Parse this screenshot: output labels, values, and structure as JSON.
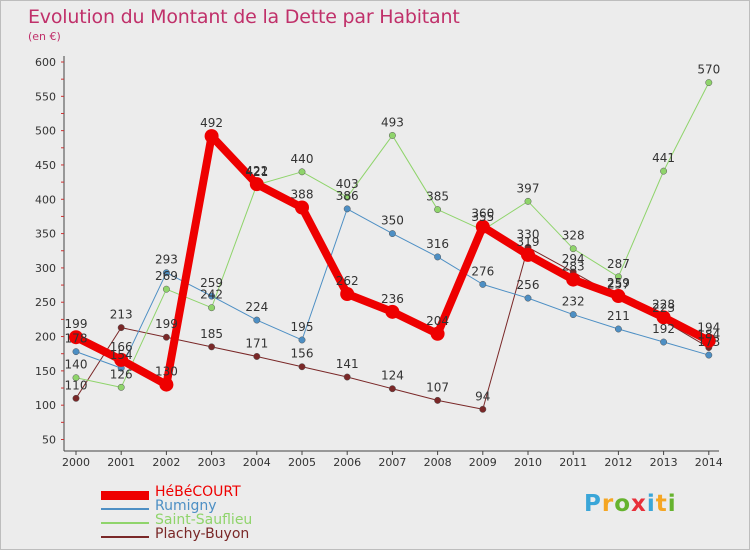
{
  "header": {
    "title": "Evolution du Montant de la Dette par Habitant",
    "subtitle": "(en €)"
  },
  "logo": {
    "text": "Proxiti",
    "letters": [
      {
        "ch": "P",
        "color": "#3aa6d8"
      },
      {
        "ch": "r",
        "color": "#f5a623"
      },
      {
        "ch": "o",
        "color": "#66b32e"
      },
      {
        "ch": "x",
        "color": "#e8303a"
      },
      {
        "ch": "i",
        "color": "#3aa6d8"
      },
      {
        "ch": "t",
        "color": "#f5a623"
      },
      {
        "ch": "i",
        "color": "#66b32e"
      }
    ]
  },
  "chart_data": {
    "type": "line",
    "title": "Evolution du Montant de la Dette par Habitant",
    "subtitle": "(en €)",
    "x": [
      "2000",
      "2001",
      "2002",
      "2003",
      "2004",
      "2005",
      "2006",
      "2007",
      "2008",
      "2009",
      "2010",
      "2011",
      "2012",
      "2013",
      "2014"
    ],
    "ylim": [
      50,
      600
    ],
    "yticks": [
      50,
      100,
      150,
      200,
      250,
      300,
      350,
      400,
      450,
      500,
      550,
      600
    ],
    "grid": false,
    "legend_position": "bottom-left",
    "series": [
      {
        "name": "HéBéCOURT",
        "color": "#ee0000",
        "width": 8,
        "values": [
          199,
          166,
          130,
          492,
          422,
          388,
          262,
          236,
          204,
          360,
          319,
          283,
          259,
          228,
          194
        ],
        "labels": [
          "199",
          "166",
          "130",
          "492",
          "422",
          "388",
          "262",
          "236",
          "204",
          "360",
          "319",
          "283",
          "259",
          "228",
          "194"
        ]
      },
      {
        "name": "Rumigny",
        "color": "#4d8fc4",
        "width": 1,
        "values": [
          178,
          154,
          293,
          259,
          224,
          195,
          386,
          350,
          316,
          276,
          256,
          232,
          211,
          192,
          173
        ],
        "labels": [
          "178",
          "154",
          "293",
          "259",
          "224",
          "195",
          "386",
          "350",
          "316",
          "276",
          "256",
          "232",
          "211",
          "192",
          "173"
        ]
      },
      {
        "name": "Saint-Sauflieu",
        "color": "#8fd46b",
        "width": 1,
        "values": [
          140,
          126,
          269,
          242,
          421,
          440,
          403,
          493,
          385,
          355,
          397,
          328,
          287,
          441,
          570
        ],
        "labels": [
          "140",
          "126",
          "269",
          "242",
          "421",
          "440",
          "403",
          "493",
          "385",
          "355",
          "397",
          "328",
          "287",
          "441",
          "570"
        ]
      },
      {
        "name": "Plachy-Buyon",
        "color": "#7a2828",
        "width": 1,
        "values": [
          110,
          213,
          199,
          185,
          171,
          156,
          141,
          124,
          107,
          94,
          330,
          294,
          257,
          223,
          184
        ],
        "labels": [
          "110",
          "213",
          "199",
          "185",
          "171",
          "156",
          "141",
          "124",
          "107",
          "94",
          "330",
          "294",
          "257",
          "223",
          "184"
        ]
      }
    ]
  }
}
